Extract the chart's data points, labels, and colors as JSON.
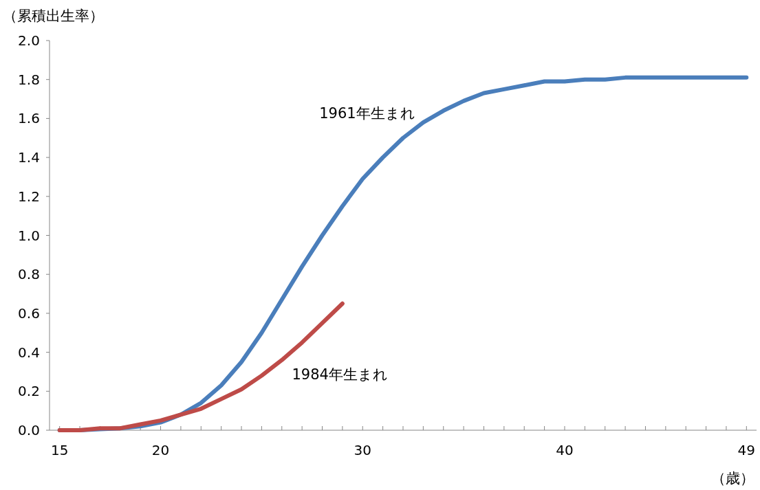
{
  "chart_data": {
    "type": "line",
    "xlabel": "（歳）",
    "ylabel": "（累積出生率）",
    "xlim": [
      14.5,
      49.5
    ],
    "xticks": [
      15,
      {
        "value": 16,
        "label": null
      },
      {
        "value": 17,
        "label": null
      },
      {
        "value": 18,
        "label": null
      },
      {
        "value": 19,
        "label": null
      },
      20,
      {
        "value": 21,
        "label": null
      },
      {
        "value": 22,
        "label": null
      },
      {
        "value": 23,
        "label": null
      },
      {
        "value": 24,
        "label": null
      },
      {
        "value": 25,
        "label": null
      },
      {
        "value": 26,
        "label": null
      },
      {
        "value": 27,
        "label": null
      },
      {
        "value": 28,
        "label": null
      },
      {
        "value": 29,
        "label": null
      },
      30,
      {
        "value": 31,
        "label": null
      },
      {
        "value": 32,
        "label": null
      },
      {
        "value": 33,
        "label": null
      },
      {
        "value": 34,
        "label": null
      },
      {
        "value": 35,
        "label": null
      },
      {
        "value": 36,
        "label": null
      },
      {
        "value": 37,
        "label": null
      },
      {
        "value": 38,
        "label": null
      },
      {
        "value": 39,
        "label": null
      },
      40,
      {
        "value": 41,
        "label": null
      },
      {
        "value": 42,
        "label": null
      },
      {
        "value": 43,
        "label": null
      },
      {
        "value": 44,
        "label": null
      },
      {
        "value": 45,
        "label": null
      },
      {
        "value": 46,
        "label": null
      },
      {
        "value": 47,
        "label": null
      },
      {
        "value": 48,
        "label": null
      },
      49
    ],
    "ylim": [
      0,
      2
    ],
    "yticks": [
      {
        "value": 0,
        "label": "0.0"
      },
      {
        "value": 0.2,
        "label": "0.2"
      },
      {
        "value": 0.4,
        "label": "0.4"
      },
      {
        "value": 0.6,
        "label": "0.6"
      },
      {
        "value": 0.8,
        "label": "0.8"
      },
      {
        "value": 1,
        "label": "1.0"
      },
      {
        "value": 1.2,
        "label": "1.2"
      },
      {
        "value": 1.4,
        "label": "1.4"
      },
      {
        "value": 1.6,
        "label": "1.6"
      },
      {
        "value": 1.8,
        "label": "1.8"
      },
      {
        "value": 2,
        "label": "2.0"
      }
    ],
    "grid": false,
    "legend": false,
    "marker": "none",
    "line_style": "solid",
    "x": [
      15,
      16,
      17,
      18,
      19,
      20,
      21,
      22,
      23,
      24,
      25,
      26,
      27,
      28,
      29,
      30,
      31,
      32,
      33,
      34,
      35,
      36,
      37,
      38,
      39,
      40,
      41,
      42,
      43,
      44,
      45,
      46,
      47,
      48,
      49
    ],
    "series": [
      {
        "name": "1961年生まれ",
        "color": "#4a7ebb",
        "values": [
          0,
          0,
          0.005,
          0.01,
          0.02,
          0.04,
          0.08,
          0.14,
          0.23,
          0.35,
          0.5,
          0.67,
          0.84,
          1.0,
          1.15,
          1.29,
          1.4,
          1.5,
          1.58,
          1.64,
          1.69,
          1.73,
          1.75,
          1.77,
          1.79,
          1.79,
          1.8,
          1.8,
          1.81,
          1.81,
          1.81,
          1.81,
          1.81,
          1.81,
          1.81
        ]
      },
      {
        "name": "1984年生まれ",
        "color": "#be4b48",
        "values": [
          0,
          0,
          0.01,
          0.01,
          0.03,
          0.05,
          0.08,
          0.11,
          0.16,
          0.21,
          0.28,
          0.36,
          0.45,
          0.55,
          0.65,
          null,
          null,
          null,
          null,
          null,
          null,
          null,
          null,
          null,
          null,
          null,
          null,
          null,
          null,
          null,
          null,
          null,
          null,
          null,
          null
        ]
      }
    ]
  }
}
